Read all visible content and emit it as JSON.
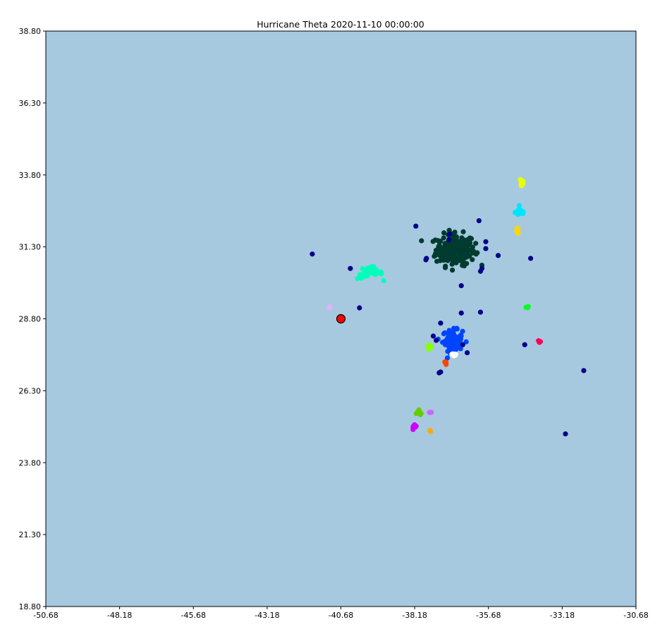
{
  "chart_data": {
    "type": "scatter",
    "title": "Hurricane Theta 2020-11-10 00:00:00",
    "xlabel": "",
    "ylabel": "",
    "xlim": [
      -50.68,
      -30.68
    ],
    "ylim": [
      18.8,
      38.8
    ],
    "x_ticks": [
      "-50.68",
      "-48.18",
      "-45.68",
      "-43.18",
      "-40.68",
      "-38.18",
      "-35.68",
      "-33.18",
      "-30.68"
    ],
    "y_ticks": [
      "18.80",
      "21.30",
      "23.80",
      "26.30",
      "28.80",
      "31.30",
      "33.80",
      "36.30",
      "38.80"
    ],
    "grid": false,
    "background_color": "#a6c9df",
    "hurricane_center": {
      "x": -40.68,
      "y": 28.8,
      "color": "#ff0000",
      "edge_color": "#000000"
    },
    "clusters": [
      {
        "color": "#003b2f",
        "center": [
          -36.8,
          31.2
        ],
        "spread": [
          0.55,
          0.45
        ],
        "count": 220
      },
      {
        "color": "#0044ff",
        "center": [
          -36.9,
          28.05
        ],
        "spread": [
          0.28,
          0.3
        ],
        "count": 90
      },
      {
        "color": "#00ffbb",
        "center": [
          -39.7,
          30.4
        ],
        "spread": [
          0.35,
          0.18
        ],
        "count": 35
      },
      {
        "color": "#eaff00",
        "center": [
          -34.55,
          33.55
        ],
        "spread": [
          0.06,
          0.18
        ],
        "count": 12
      },
      {
        "color": "#00e5ff",
        "center": [
          -34.6,
          32.5
        ],
        "spread": [
          0.14,
          0.12
        ],
        "count": 18
      },
      {
        "color": "#ffd700",
        "center": [
          -34.7,
          31.85
        ],
        "spread": [
          0.05,
          0.08
        ],
        "count": 6
      },
      {
        "color": "#00ff22",
        "center": [
          -34.38,
          29.2
        ],
        "spread": [
          0.05,
          0.03
        ],
        "count": 6
      },
      {
        "color": "#ff0055",
        "center": [
          -33.95,
          28.0
        ],
        "spread": [
          0.06,
          0.04
        ],
        "count": 6
      },
      {
        "color": "#88ff00",
        "center": [
          -37.67,
          27.8
        ],
        "spread": [
          0.06,
          0.07
        ],
        "count": 12
      },
      {
        "color": "#ffffff",
        "center": [
          -36.85,
          27.55
        ],
        "spread": [
          0.08,
          0.08
        ],
        "count": 8
      },
      {
        "color": "#ff4400",
        "center": [
          -37.15,
          27.25
        ],
        "spread": [
          0.04,
          0.04
        ],
        "count": 4
      },
      {
        "color": "#66cc00",
        "center": [
          -38.0,
          25.55
        ],
        "spread": [
          0.08,
          0.08
        ],
        "count": 7
      },
      {
        "color": "#cc66ff",
        "center": [
          -37.65,
          25.55
        ],
        "spread": [
          0.05,
          0.02
        ],
        "count": 4
      },
      {
        "color": "#cc00ff",
        "center": [
          -38.2,
          25.0
        ],
        "spread": [
          0.08,
          0.08
        ],
        "count": 10
      },
      {
        "color": "#ffaa00",
        "center": [
          -37.65,
          24.9
        ],
        "spread": [
          0.02,
          0.03
        ],
        "count": 3
      },
      {
        "color": "#eeaaff",
        "center": [
          -41.05,
          29.2
        ],
        "spread": [
          0.02,
          0.02
        ],
        "count": 3
      }
    ],
    "scattered_points": {
      "color": "#00008b",
      "points": [
        [
          -38.14,
          32.02
        ],
        [
          -37.0,
          31.75
        ],
        [
          -37.02,
          31.55
        ],
        [
          -36.0,
          32.21
        ],
        [
          -35.35,
          31.0
        ],
        [
          -34.25,
          30.9
        ],
        [
          -35.77,
          31.48
        ],
        [
          -35.77,
          31.24
        ],
        [
          -37.78,
          30.9
        ],
        [
          -37.8,
          30.85
        ],
        [
          -35.9,
          30.55
        ],
        [
          -35.95,
          30.45
        ],
        [
          -41.65,
          31.05
        ],
        [
          -40.36,
          30.55
        ],
        [
          -40.05,
          29.18
        ],
        [
          -36.6,
          29.95
        ],
        [
          -36.6,
          29.0
        ],
        [
          -35.95,
          29.03
        ],
        [
          -37.3,
          28.65
        ],
        [
          -37.55,
          28.2
        ],
        [
          -37.45,
          28.05
        ],
        [
          -36.55,
          27.9
        ],
        [
          -36.4,
          27.62
        ],
        [
          -37.35,
          26.92
        ],
        [
          -37.3,
          26.95
        ],
        [
          -34.45,
          27.9
        ],
        [
          -32.45,
          27.0
        ],
        [
          -33.07,
          24.8
        ]
      ]
    }
  }
}
